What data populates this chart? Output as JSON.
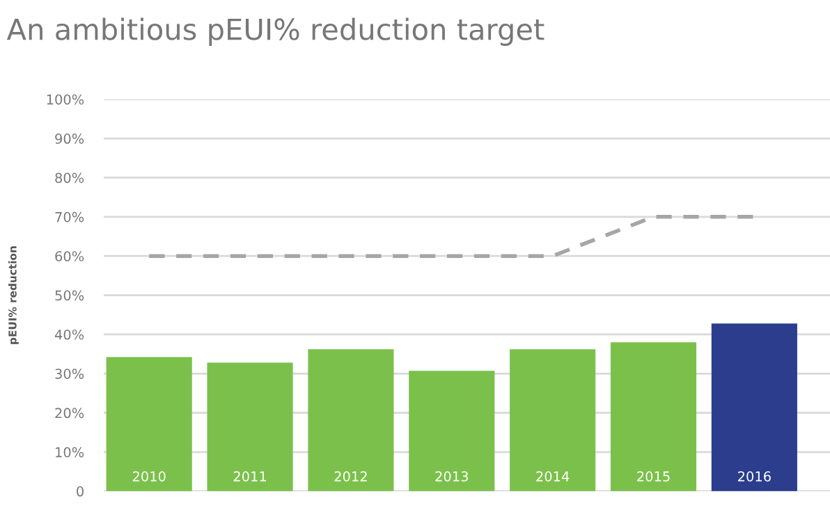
{
  "chart_data": {
    "type": "bar",
    "title": "An ambitious pEUI% reduction target",
    "ylabel": "pEUI% reduction",
    "categories": [
      "2010",
      "2011",
      "2012",
      "2013",
      "2014",
      "2015",
      "2016"
    ],
    "series": [
      {
        "values": [
          34.2,
          32.8,
          36.2,
          30.7,
          36.2,
          38,
          42.8
        ],
        "colors": [
          "#7bc04b",
          "#7bc04b",
          "#7bc04b",
          "#7bc04b",
          "#7bc04b",
          "#7bc04b",
          "#2b3d8c"
        ]
      },
      {
        "type": "line",
        "values": [
          60,
          60,
          60,
          60,
          60,
          70,
          70
        ],
        "color": "#a6a6a6",
        "line_style": "dashed"
      }
    ],
    "ylim": [
      0,
      100
    ],
    "yticks": [
      {
        "value": 0,
        "label": "0"
      },
      {
        "value": 10,
        "label": "10%"
      },
      {
        "value": 20,
        "label": "20%"
      },
      {
        "value": 30,
        "label": "30%"
      },
      {
        "value": 40,
        "label": "40%"
      },
      {
        "value": 50,
        "label": "50%"
      },
      {
        "value": 60,
        "label": "60%"
      },
      {
        "value": 70,
        "label": "70%"
      },
      {
        "value": 80,
        "label": "80%"
      },
      {
        "value": 90,
        "label": "90%"
      },
      {
        "value": 100,
        "label": "100%"
      }
    ],
    "grid": "y"
  }
}
